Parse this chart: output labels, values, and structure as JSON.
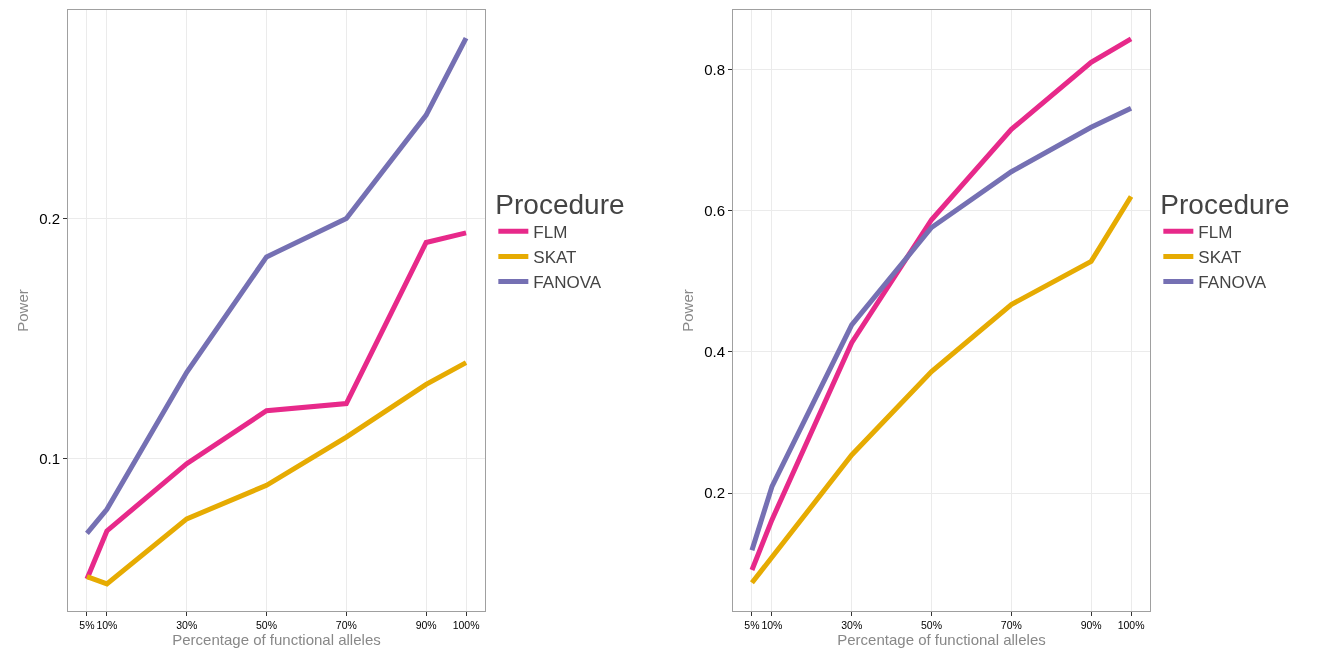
{
  "chart_data": [
    {
      "type": "line",
      "xlabel": "Percentage of functional alleles",
      "ylabel": "Power",
      "legend_title": "Procedure",
      "legend": "right",
      "grid": true,
      "marker": "none",
      "line_style": "solid",
      "x": [
        5,
        10,
        30,
        50,
        70,
        90,
        100
      ],
      "xlim": [
        0.25,
        104.75
      ],
      "xticks": [
        {
          "value": 5,
          "label": "5%"
        },
        {
          "value": 10,
          "label": "10%"
        },
        {
          "value": 30,
          "label": "30%"
        },
        {
          "value": 50,
          "label": "50%"
        },
        {
          "value": 70,
          "label": "70%"
        },
        {
          "value": 90,
          "label": "90%"
        },
        {
          "value": 100,
          "label": "100%"
        }
      ],
      "ylim": [
        0.0367,
        0.2867
      ],
      "yticks": [
        0.1,
        0.2
      ],
      "series": [
        {
          "name": "FLM",
          "color": "#e7298a",
          "values": [
            0.05,
            0.07,
            0.098,
            0.12,
            0.123,
            0.19,
            0.194
          ]
        },
        {
          "name": "SKAT",
          "color": "#e6ab02",
          "values": [
            0.051,
            0.048,
            0.075,
            0.089,
            0.109,
            0.131,
            0.14
          ]
        },
        {
          "name": "FANOVA",
          "color": "#7570b3",
          "values": [
            0.069,
            0.079,
            0.136,
            0.184,
            0.2,
            0.243,
            0.275
          ]
        }
      ]
    },
    {
      "type": "line",
      "xlabel": "Percentage of functional alleles",
      "ylabel": "Power",
      "legend_title": "Procedure",
      "legend": "right",
      "grid": true,
      "marker": "none",
      "line_style": "solid",
      "x": [
        5,
        10,
        30,
        50,
        70,
        90,
        100
      ],
      "xlim": [
        0.25,
        104.75
      ],
      "xticks": [
        {
          "value": 5,
          "label": "5%"
        },
        {
          "value": 10,
          "label": "10%"
        },
        {
          "value": 30,
          "label": "30%"
        },
        {
          "value": 50,
          "label": "50%"
        },
        {
          "value": 70,
          "label": "70%"
        },
        {
          "value": 90,
          "label": "90%"
        },
        {
          "value": 100,
          "label": "100%"
        }
      ],
      "ylim": [
        0.033,
        0.884
      ],
      "yticks": [
        0.2,
        0.4,
        0.6,
        0.8
      ],
      "series": [
        {
          "name": "FLM",
          "color": "#e7298a",
          "values": [
            0.091,
            0.162,
            0.413,
            0.587,
            0.715,
            0.81,
            0.843
          ]
        },
        {
          "name": "SKAT",
          "color": "#e6ab02",
          "values": [
            0.073,
            0.109,
            0.254,
            0.372,
            0.467,
            0.528,
            0.62
          ]
        },
        {
          "name": "FANOVA",
          "color": "#7570b3",
          "values": [
            0.119,
            0.209,
            0.438,
            0.576,
            0.655,
            0.718,
            0.745
          ]
        }
      ]
    }
  ]
}
